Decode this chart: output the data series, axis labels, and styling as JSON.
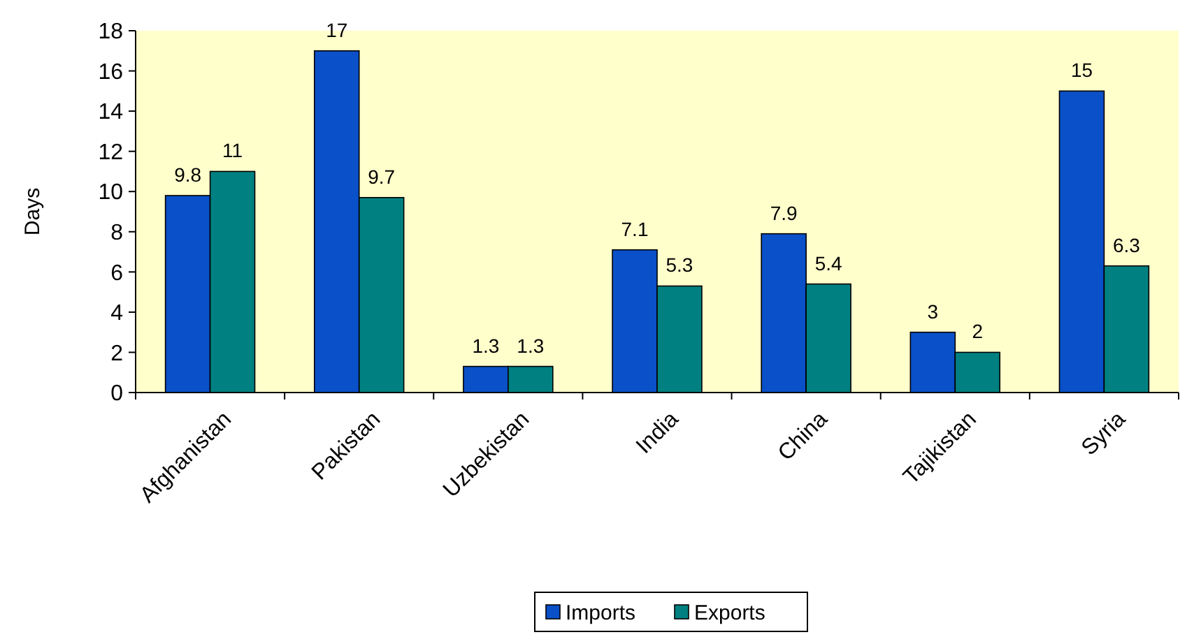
{
  "chart_data": {
    "type": "bar",
    "ylabel": "Days",
    "categories": [
      "Afghanistan",
      "Pakistan",
      "Uzbekistan",
      "India",
      "China",
      "Tajikistan",
      "Syria"
    ],
    "series": [
      {
        "name": "Imports",
        "color": "#0a50c8",
        "values": [
          9.8,
          17,
          1.3,
          7.1,
          7.9,
          3,
          15
        ]
      },
      {
        "name": "Exports",
        "color": "#008080",
        "values": [
          11,
          9.7,
          1.3,
          5.3,
          5.4,
          2,
          6.3
        ]
      }
    ],
    "ylim": [
      0,
      18
    ],
    "yticks": [
      0,
      2,
      4,
      6,
      8,
      10,
      12,
      14,
      16,
      18
    ],
    "data_labels": true,
    "legend": "bottom",
    "grid": false
  }
}
